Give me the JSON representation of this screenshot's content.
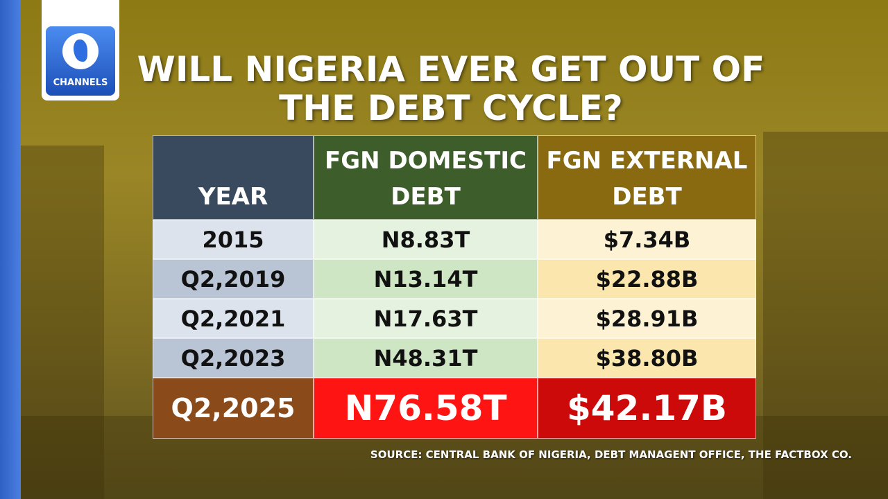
{
  "logo": {
    "text": "CHANNELS"
  },
  "header": {
    "title": "WILL NIGERIA EVER GET OUT OF THE DEBT CYCLE?"
  },
  "table": {
    "columns": [
      "YEAR",
      "FGN DOMESTIC DEBT",
      "FGN EXTERNAL DEBT"
    ],
    "rows": [
      [
        "2015",
        "N8.83T",
        "$7.34B"
      ],
      [
        "Q2,2019",
        "N13.14T",
        "$22.88B"
      ],
      [
        "Q2,2021",
        "N17.63T",
        "$28.91B"
      ],
      [
        "Q2,2023",
        "N48.31T",
        "$38.80B"
      ],
      [
        "Q2,2025",
        "N76.58T",
        "$42.17B"
      ]
    ]
  },
  "source": "SOURCE: CENTRAL BANK OF NIGERIA, DEBT MANAGENT OFFICE, THE FACTBOX CO."
}
